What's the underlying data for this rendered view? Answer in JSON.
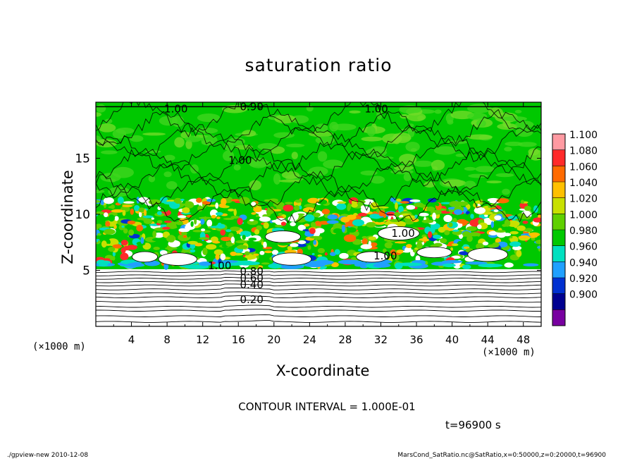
{
  "chart_data": {
    "type": "heatmap",
    "title": "saturation ratio",
    "xlabel": "X-coordinate",
    "ylabel": "Z-coordinate",
    "x_unit": "(×1000 m)",
    "y_unit": "(×1000 m)",
    "xlim": [
      0,
      50
    ],
    "ylim": [
      0,
      20
    ],
    "x_ticks": [
      4,
      8,
      12,
      16,
      20,
      24,
      28,
      32,
      36,
      40,
      44,
      48
    ],
    "y_ticks": [
      5,
      10,
      15
    ],
    "colorbar": {
      "levels": [
        "1.100",
        "1.080",
        "1.060",
        "1.040",
        "1.020",
        "1.000",
        "0.980",
        "0.960",
        "0.940",
        "0.920",
        "0.900"
      ],
      "colors": [
        "#ff9aa2",
        "#ff2a2a",
        "#ff6a00",
        "#ffc000",
        "#c8e000",
        "#60d000",
        "#00c800",
        "#00e0c0",
        "#20a0ff",
        "#0030d0",
        "#000090",
        "#7800a0"
      ]
    },
    "contour_labels": [
      {
        "text": "1.00",
        "x": 9.0,
        "z": 19.4
      },
      {
        "text": "0.90",
        "x": 17.5,
        "z": 19.6
      },
      {
        "text": "1.00",
        "x": 31.5,
        "z": 19.4
      },
      {
        "text": "1.00",
        "x": 16.2,
        "z": 14.8
      },
      {
        "text": "1.00",
        "x": 34.5,
        "z": 8.3
      },
      {
        "text": "1.00",
        "x": 13.9,
        "z": 5.4
      },
      {
        "text": "0.80",
        "x": 17.5,
        "z": 4.9
      },
      {
        "text": "0.60",
        "x": 17.5,
        "z": 4.3
      },
      {
        "text": "0.40",
        "x": 17.5,
        "z": 3.7
      },
      {
        "text": "0.20",
        "x": 17.5,
        "z": 2.4
      },
      {
        "text": "1.00",
        "x": 32.5,
        "z": 6.3
      }
    ],
    "contour_interval_text": "CONTOUR INTERVAL = 1.000E-01",
    "time_text": "t=96900 s"
  },
  "footer": {
    "left": "./gpview-new  2010-12-08",
    "right": "MarsCond_SatRatio.nc@SatRatio,x=0:50000,z=0:20000,t=96900"
  }
}
